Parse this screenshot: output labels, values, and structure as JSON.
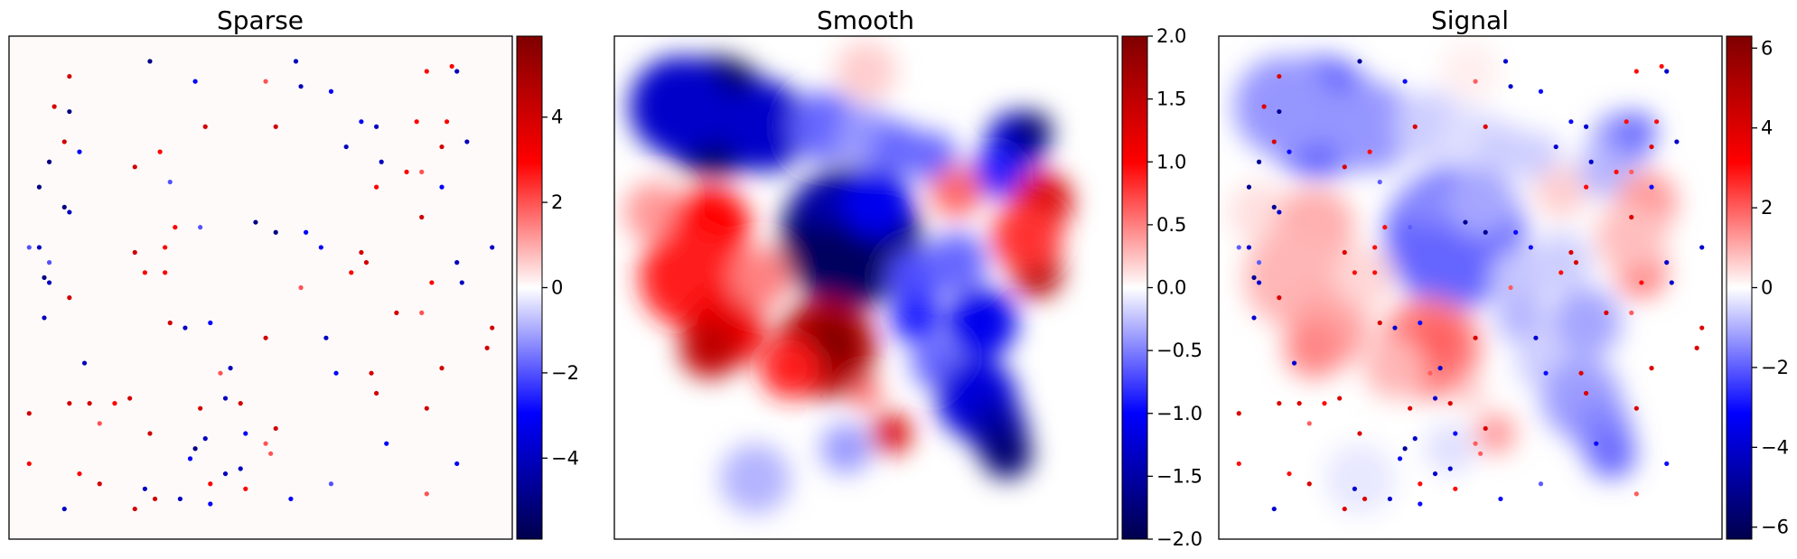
{
  "chart_data": [
    {
      "type": "heatmap",
      "title": "Sparse",
      "colormap": "seismic",
      "colorbar": {
        "vmin": -5.9,
        "vmax": 5.9,
        "ticks": [
          -4,
          -2,
          0,
          2,
          4
        ],
        "tick_labels": [
          "−4",
          "−2",
          "0",
          "2",
          "4"
        ]
      },
      "axes_ticks": false,
      "grid": false,
      "description_values": {
        "background": 0,
        "spikes_min": -5.9,
        "spikes_max": 5.9
      }
    },
    {
      "type": "heatmap",
      "title": "Smooth",
      "colormap": "seismic",
      "colorbar": {
        "vmin": -2.0,
        "vmax": 2.0,
        "ticks": [
          -2.0,
          -1.5,
          -1.0,
          -0.5,
          0.0,
          0.5,
          1.0,
          1.5,
          2.0
        ],
        "tick_labels": [
          "−2.0",
          "−1.5",
          "−1.0",
          "−0.5",
          "0.0",
          "0.5",
          "1.0",
          "1.5",
          "2.0"
        ]
      },
      "axes_ticks": false,
      "grid": false
    },
    {
      "type": "heatmap",
      "title": "Signal",
      "colormap": "seismic",
      "colorbar": {
        "vmin": -6.3,
        "vmax": 6.3,
        "ticks": [
          -6,
          -4,
          -2,
          0,
          2,
          4,
          6
        ],
        "tick_labels": [
          "−6",
          "−4",
          "−2",
          "0",
          "2",
          "4",
          "6"
        ]
      },
      "axes_ticks": false,
      "grid": false
    }
  ],
  "colors": {
    "seismic_stops": [
      "#00004c",
      "#0000ff",
      "#ffffff",
      "#ff0000",
      "#7f0000"
    ]
  }
}
